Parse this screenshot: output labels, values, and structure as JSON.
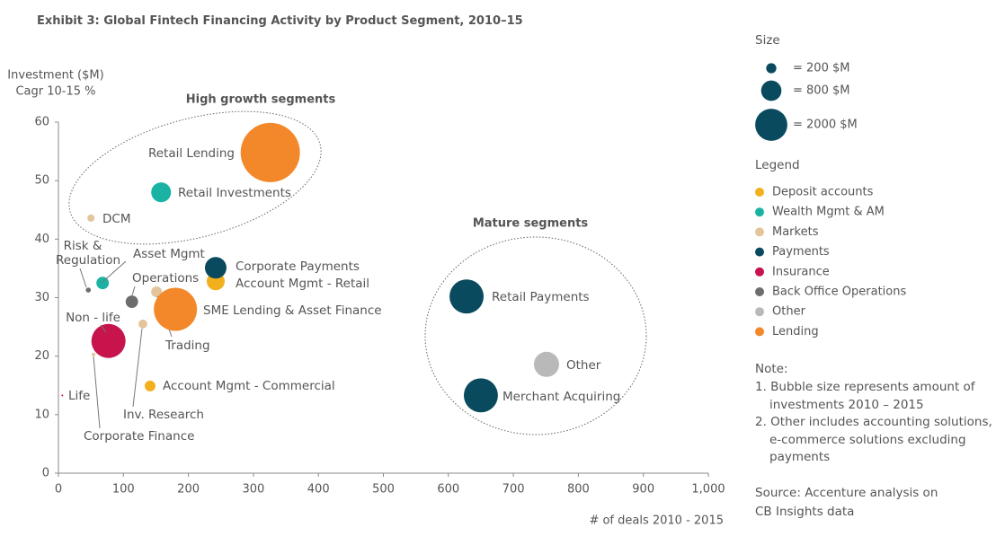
{
  "chart_data": {
    "type": "bubble",
    "title": "Exhibit 3: Global Fintech Financing Activity by Product Segment, 2010–15",
    "ylabel": [
      "Investment ($M)",
      "Cagr 10-15 %"
    ],
    "xlabel": "# of deals 2010 - 2015",
    "xlim": [
      0,
      1000
    ],
    "ylim": [
      0,
      60
    ],
    "xticks": [
      0,
      100,
      200,
      300,
      400,
      500,
      600,
      700,
      800,
      900,
      {
        "value": 1000,
        "label": "1,000"
      }
    ],
    "yticks": [
      0,
      10,
      20,
      30,
      40,
      50,
      60
    ],
    "annotations": [
      "High growth segments",
      "Mature segments"
    ],
    "size_title": "Size",
    "size_legend": [
      {
        "value": 200,
        "label": "= 200 $M"
      },
      {
        "value": 800,
        "label": "= 800 $M"
      },
      {
        "value": 2000,
        "label": "= 2000 $M"
      }
    ],
    "size_color": "#0a4a5e",
    "legend_title": "Legend",
    "series": [
      {
        "name": "Deposit accounts",
        "color": "#f2b01e",
        "labels": [
          "Account Mgmt - Commercial",
          "Account Mgmt - Retail"
        ],
        "x": [
          141,
          242
        ],
        "y": [
          14.9,
          32.8
        ],
        "sizes": [
          225,
          625
        ]
      },
      {
        "name": "Wealth Mgmt & AM",
        "color": "#1ab3a3",
        "labels": [
          "Retail Investments",
          "Asset Mgmt"
        ],
        "x": [
          158,
          68
        ],
        "y": [
          48,
          32.5
        ],
        "sizes": [
          760,
          300
        ]
      },
      {
        "name": "Markets",
        "color": "#e2c59a",
        "labels": [
          "DCM",
          "Trading",
          "Inv. Research",
          "Corporate Finance"
        ],
        "x": [
          50,
          151,
          130,
          54
        ],
        "y": [
          43.6,
          31,
          25.5,
          20.3
        ],
        "sizes": [
          100,
          225,
          150,
          25
        ]
      },
      {
        "name": "Payments",
        "color": "#0a4a5e",
        "labels": [
          "Corporate Payments",
          "Retail Payments",
          "Merchant Acquiring"
        ],
        "x": [
          242,
          628,
          650
        ],
        "y": [
          35.1,
          30.2,
          13.3
        ],
        "sizes": [
          900,
          2250,
          2250
        ]
      },
      {
        "name": "Insurance",
        "color": "#c8144d",
        "labels": [
          "Non - life",
          "Life"
        ],
        "x": [
          77,
          6
        ],
        "y": [
          22.6,
          13.3
        ],
        "sizes": [
          2250,
          6
        ]
      },
      {
        "name": "Back Office Operations",
        "color": "#6d6d6d",
        "labels": [
          "Risk & Regulation",
          "Operations"
        ],
        "x": [
          46,
          113
        ],
        "y": [
          31.3,
          29.3
        ],
        "sizes": [
          50,
          300
        ]
      },
      {
        "name": "Other",
        "color": "#b9b9b9",
        "labels": [
          "Other"
        ],
        "x": [
          751
        ],
        "y": [
          18.6
        ],
        "sizes": [
          1225
        ]
      },
      {
        "name": "Lending",
        "color": "#f2882a",
        "labels": [
          "Retail Lending",
          "SME Lending & Asset Finance"
        ],
        "x": [
          326,
          180
        ],
        "y": [
          54.8,
          28
        ],
        "sizes": [
          6800,
          3600
        ]
      }
    ],
    "note_title": "Note:",
    "notes": [
      "1. Bubble size represents amount of investments 2010 – 2015",
      "2. Other includes accounting solutions, e-commerce solutions excluding payments"
    ],
    "source": "Source: Accenture analysis on CB Insights data"
  }
}
